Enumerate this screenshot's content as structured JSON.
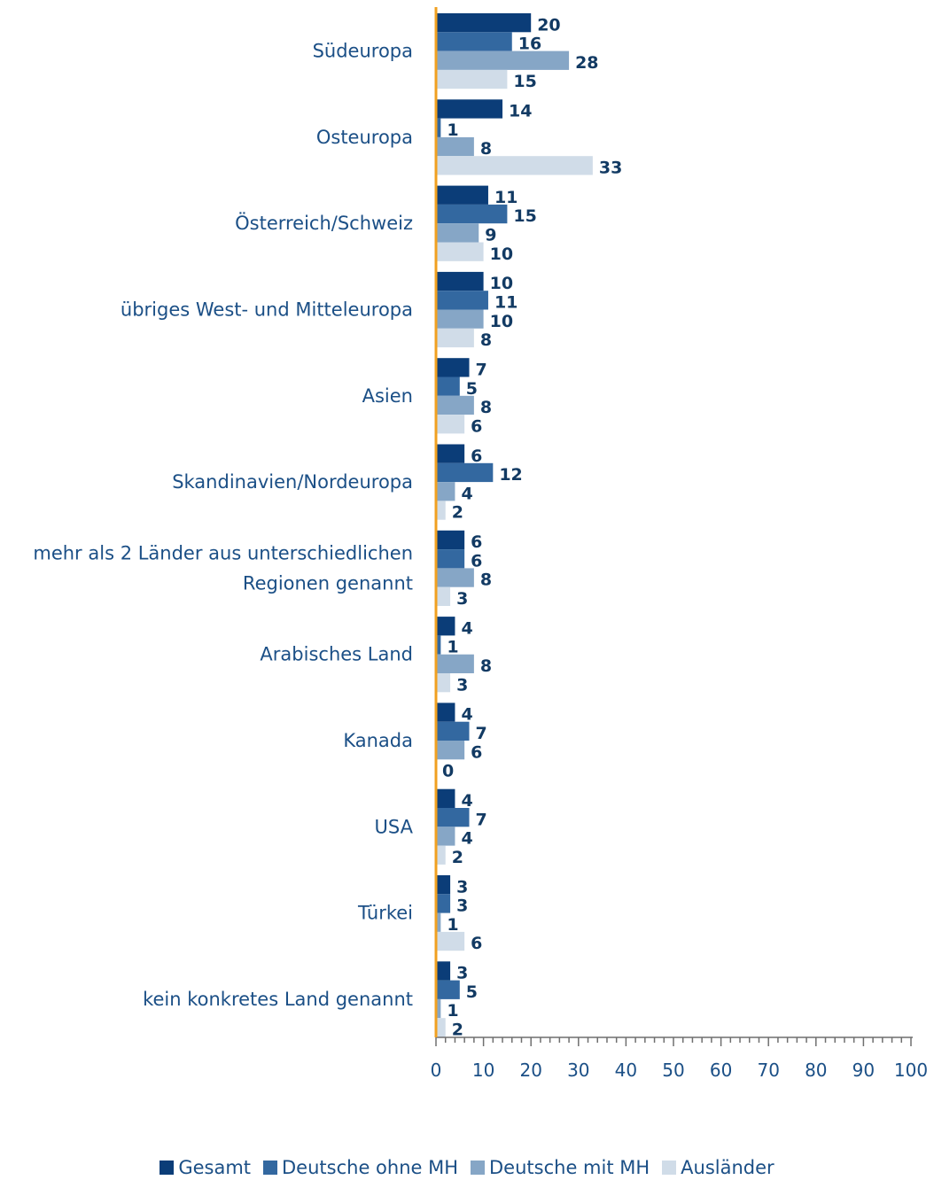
{
  "chart_data": {
    "type": "bar",
    "orientation": "horizontal",
    "categories": [
      [
        "Südeuropa"
      ],
      [
        "Osteuropa"
      ],
      [
        "Österreich/Schweiz"
      ],
      [
        "übriges West- und Mitteleuropa"
      ],
      [
        "Asien"
      ],
      [
        "Skandinavien/Nordeuropa"
      ],
      [
        "mehr als 2 Länder aus unterschiedlichen",
        "Regionen genannt"
      ],
      [
        "Arabisches Land"
      ],
      [
        "Kanada"
      ],
      [
        "USA"
      ],
      [
        "Türkei"
      ],
      [
        "kein konkretes Land genannt"
      ]
    ],
    "series": [
      {
        "name": "Gesamt",
        "color": "#0b3d78",
        "values": [
          20,
          14,
          11,
          10,
          7,
          6,
          6,
          4,
          4,
          4,
          3,
          3
        ]
      },
      {
        "name": "Deutsche ohne MH",
        "color": "#3368a0",
        "values": [
          16,
          1,
          15,
          11,
          5,
          12,
          6,
          1,
          7,
          7,
          3,
          5
        ]
      },
      {
        "name": "Deutsche mit MH",
        "color": "#86a6c6",
        "values": [
          28,
          8,
          9,
          10,
          8,
          4,
          8,
          8,
          6,
          4,
          1,
          1
        ]
      },
      {
        "name": "Ausländer",
        "color": "#d0dce8",
        "values": [
          15,
          33,
          10,
          8,
          6,
          2,
          3,
          3,
          0,
          2,
          6,
          2
        ]
      }
    ],
    "xlim": [
      0,
      100
    ],
    "xticks": [
      "0",
      "10",
      "20",
      "30",
      "40",
      "50",
      "60",
      "70",
      "80",
      "90",
      "100"
    ],
    "axis_line_color": "#f0a020",
    "grid": false,
    "legend_position": "bottom"
  }
}
